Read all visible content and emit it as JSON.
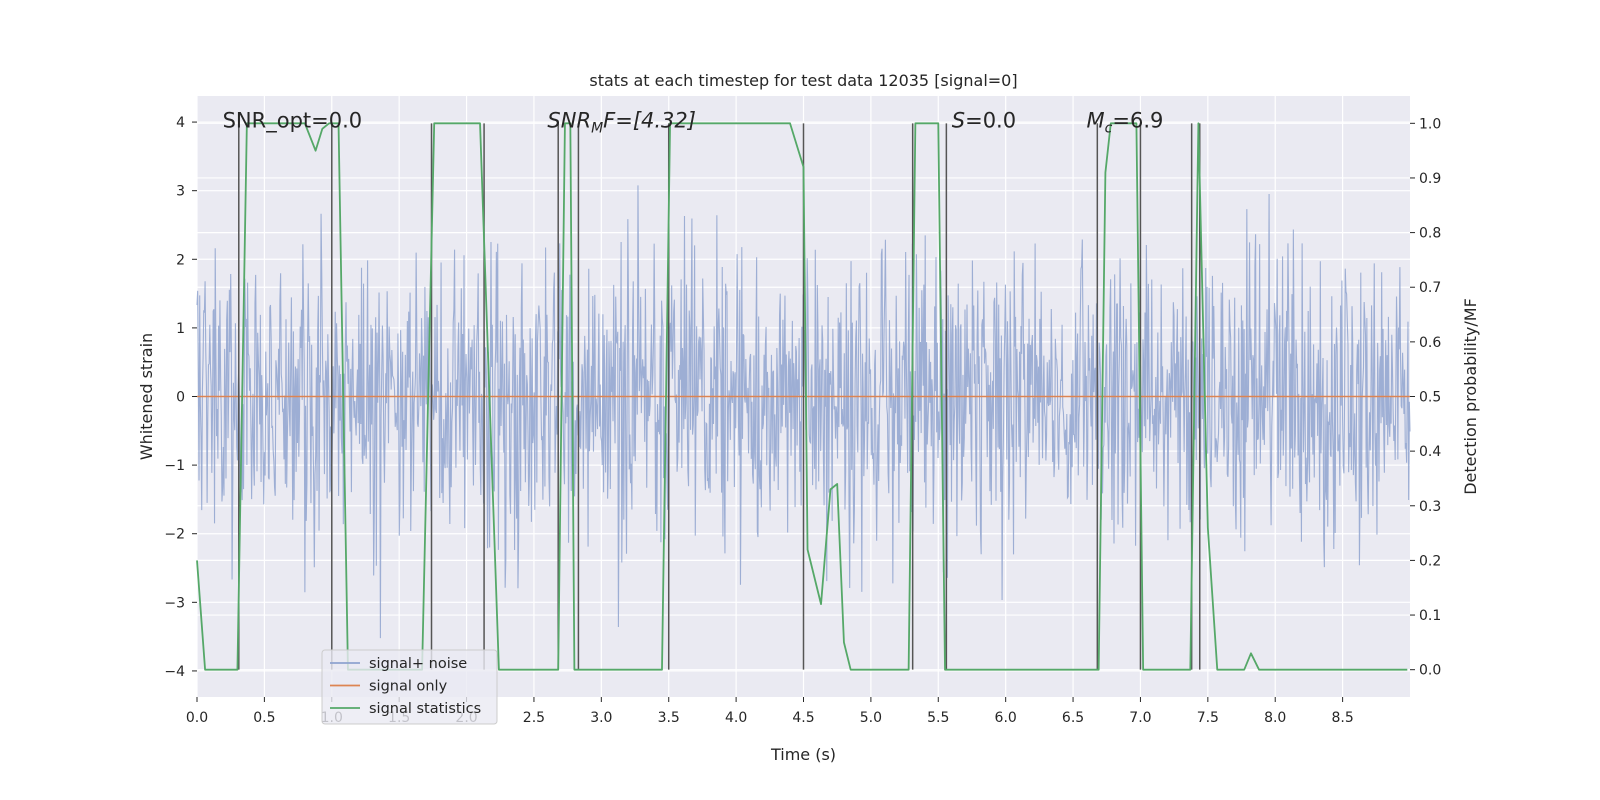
{
  "chart_data": {
    "type": "line",
    "title": "stats at each timestep for test data 12035 [signal=0]",
    "xlabel": "Time (s)",
    "ylabel": "Whitened strain",
    "y2label": "Detection probability/MF",
    "xlim": [
      0.0,
      9.0
    ],
    "ylim": [
      -4.38,
      4.38
    ],
    "y2lim": [
      -0.05,
      1.05
    ],
    "x_ticks": [
      "0.0",
      "0.5",
      "1.0",
      "1.5",
      "2.0",
      "2.5",
      "3.0",
      "3.5",
      "4.0",
      "4.5",
      "5.0",
      "5.5",
      "6.0",
      "6.5",
      "7.0",
      "7.5",
      "8.0",
      "8.5"
    ],
    "y_ticks": [
      "4",
      "3",
      "2",
      "1",
      "0",
      "−1",
      "−2",
      "−3",
      "−4"
    ],
    "y2_ticks": [
      "1.0",
      "0.9",
      "0.8",
      "0.7",
      "0.6",
      "0.5",
      "0.4",
      "0.3",
      "0.2",
      "0.1",
      "0.0"
    ],
    "legend": {
      "position": "lower-left",
      "entries": [
        "signal+ noise",
        "signal only",
        "signal statistics"
      ]
    },
    "annotations": {
      "snr_opt": "SNR_opt=0.0",
      "snr_mf_main": "SNR",
      "snr_mf_sub": "M",
      "snr_mf_tail": "F=[4.32]",
      "s_main": "S",
      "s_tail": "=0.0",
      "mc_main": "M",
      "mc_sub": "c",
      "mc_tail": "=6.9"
    },
    "series": [
      {
        "name": "signal+ noise",
        "color": "#8fa3cf",
        "description": "whitened noise sampled at ~4096 Hz, roughly Gaussian with unit variance, peaks near ±3.7",
        "n_points": 1800,
        "std": 1.0
      },
      {
        "name": "signal only",
        "color": "#dd8452",
        "x": [
          0.0,
          9.0
        ],
        "y": [
          0.0,
          0.0
        ]
      },
      {
        "name": "signal statistics",
        "color": "#55a868",
        "axis": "right",
        "x": [
          0.0,
          0.06,
          0.22,
          0.3,
          0.37,
          0.8,
          0.88,
          0.93,
          0.98,
          1.05,
          1.12,
          1.5,
          1.67,
          1.76,
          2.1,
          2.24,
          2.34,
          2.42,
          2.68,
          2.73,
          2.77,
          2.8,
          2.87,
          3.45,
          3.51,
          3.56,
          4.4,
          4.5,
          4.53,
          4.63,
          4.7,
          4.75,
          4.8,
          4.85,
          5.28,
          5.33,
          5.5,
          5.55,
          5.66,
          5.82,
          6.69,
          6.74,
          6.78,
          6.97,
          7.02,
          7.07,
          7.37,
          7.43,
          7.5,
          7.57,
          7.7,
          7.77,
          7.82,
          7.88,
          7.94,
          8.98
        ],
        "y": [
          0.2,
          0.0,
          0.0,
          0.0,
          1.0,
          1.0,
          0.95,
          0.99,
          1.0,
          1.0,
          0.0,
          0.0,
          0.0,
          1.0,
          1.0,
          0.0,
          0.0,
          0.0,
          0.0,
          1.0,
          1.0,
          0.0,
          0.0,
          0.0,
          1.0,
          1.0,
          1.0,
          0.92,
          0.22,
          0.12,
          0.33,
          0.34,
          0.05,
          0.0,
          0.0,
          1.0,
          1.0,
          0.0,
          0.0,
          0.0,
          0.0,
          0.91,
          1.0,
          1.0,
          0.0,
          0.0,
          0.0,
          1.0,
          0.26,
          0.0,
          0.0,
          0.0,
          0.03,
          0.0,
          0.0,
          0.0
        ]
      }
    ],
    "vertical_lines": {
      "color": "#555555",
      "x": [
        0.31,
        1.0,
        1.74,
        2.13,
        2.68,
        2.83,
        3.5,
        4.5,
        5.31,
        5.56,
        6.68,
        7.0,
        7.38,
        7.44
      ]
    }
  }
}
